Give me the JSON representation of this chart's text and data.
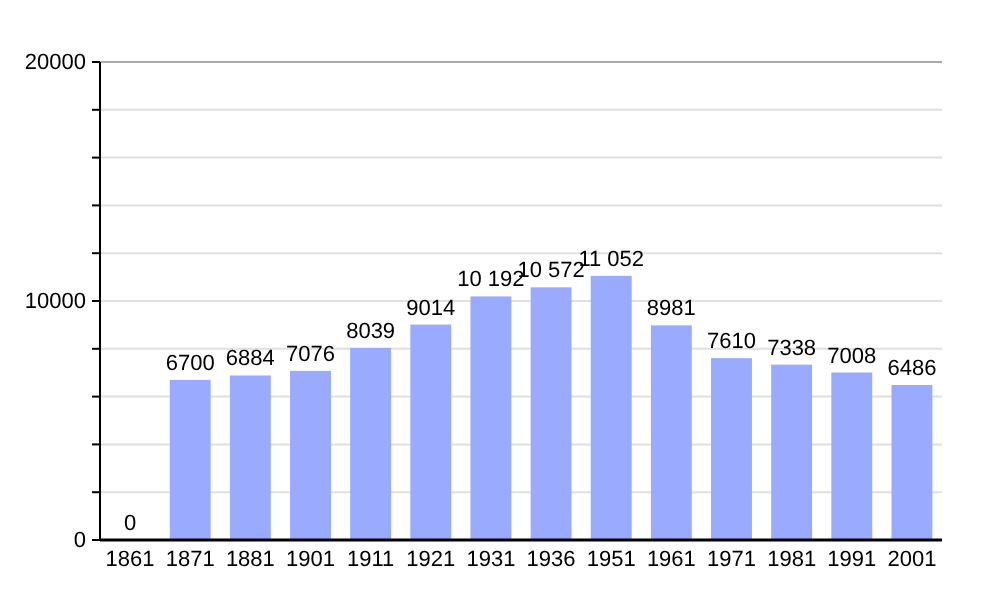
{
  "chart_data": {
    "type": "bar",
    "categories": [
      "1861",
      "1871",
      "1881",
      "1901",
      "1911",
      "1921",
      "1931",
      "1936",
      "1951",
      "1961",
      "1971",
      "1981",
      "1991",
      "2001"
    ],
    "values": [
      0,
      6700,
      6884,
      7076,
      8039,
      9014,
      10192,
      10572,
      11052,
      8981,
      7610,
      7338,
      7008,
      6486
    ],
    "value_labels": [
      "0",
      "6700",
      "6884",
      "7076",
      "8039",
      "9014",
      "10 192",
      "10 572",
      "11 052",
      "8981",
      "7610",
      "7338",
      "7008",
      "6486"
    ],
    "color": "#99aaff",
    "ylim": [
      0,
      20000
    ],
    "yticks": [
      0,
      {
        "value": 2000,
        "label": null
      },
      {
        "value": 4000,
        "label": null
      },
      {
        "value": 6000,
        "label": null
      },
      {
        "value": 8000,
        "label": null
      },
      10000,
      {
        "value": 12000,
        "label": null
      },
      {
        "value": 14000,
        "label": null
      },
      {
        "value": 16000,
        "label": null
      },
      {
        "value": 18000,
        "label": null
      },
      20000
    ],
    "grid": true
  }
}
